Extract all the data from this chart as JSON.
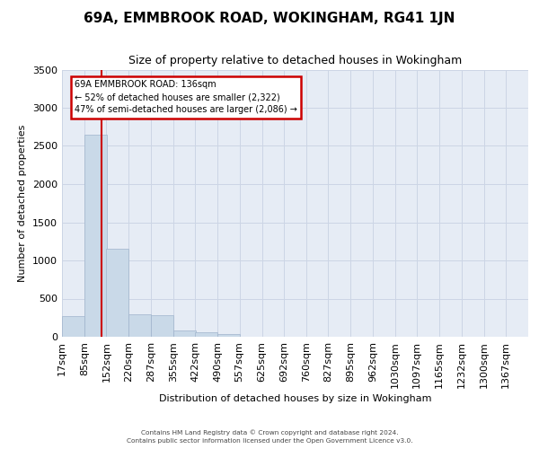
{
  "title": "69A, EMMBROOK ROAD, WOKINGHAM, RG41 1JN",
  "subtitle": "Size of property relative to detached houses in Wokingham",
  "xlabel": "Distribution of detached houses by size in Wokingham",
  "ylabel": "Number of detached properties",
  "bin_labels": [
    "17sqm",
    "85sqm",
    "152sqm",
    "220sqm",
    "287sqm",
    "355sqm",
    "422sqm",
    "490sqm",
    "557sqm",
    "625sqm",
    "692sqm",
    "760sqm",
    "827sqm",
    "895sqm",
    "962sqm",
    "1030sqm",
    "1097sqm",
    "1165sqm",
    "1232sqm",
    "1300sqm",
    "1367sqm"
  ],
  "bar_heights": [
    270,
    2650,
    1150,
    290,
    285,
    80,
    55,
    35,
    0,
    0,
    0,
    0,
    0,
    0,
    0,
    0,
    0,
    0,
    0,
    0,
    0
  ],
  "bar_color": "#c9d9e8",
  "bar_edge_color": "#a0b4cc",
  "red_line_x": 136,
  "bin_edges": [
    17,
    85,
    152,
    220,
    287,
    355,
    422,
    490,
    557,
    625,
    692,
    760,
    827,
    895,
    962,
    1030,
    1097,
    1165,
    1232,
    1300,
    1367
  ],
  "annotation_line1": "69A EMMBROOK ROAD: 136sqm",
  "annotation_line2": "← 52% of detached houses are smaller (2,322)",
  "annotation_line3": "47% of semi-detached houses are larger (2,086) →",
  "annotation_box_facecolor": "#ffffff",
  "annotation_box_edgecolor": "#cc0000",
  "ylim_max": 3500,
  "yticks": [
    0,
    500,
    1000,
    1500,
    2000,
    2500,
    3000,
    3500
  ],
  "grid_color": "#ccd5e5",
  "bg_color": "#e6ecf5",
  "footer1": "Contains HM Land Registry data © Crown copyright and database right 2024.",
  "footer2": "Contains public sector information licensed under the Open Government Licence v3.0."
}
